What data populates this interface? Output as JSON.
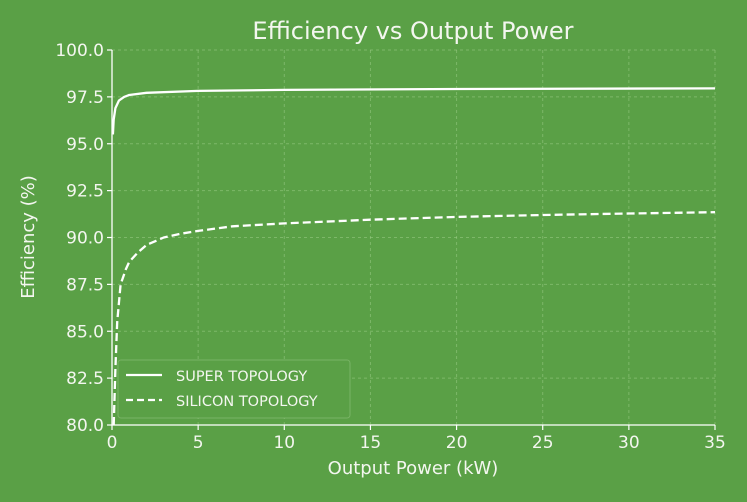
{
  "chart_data": {
    "type": "line",
    "title": "Efficiency vs Output Power",
    "xlabel": "Output Power (kW)",
    "ylabel": "Efficiency (%)",
    "xlim": [
      0,
      35
    ],
    "ylim": [
      80,
      100
    ],
    "xticks": [
      0,
      5,
      10,
      15,
      20,
      25,
      30,
      35
    ],
    "yticks": [
      "80.0",
      "82.5",
      "85.0",
      "87.5",
      "90.0",
      "92.5",
      "95.0",
      "97.5",
      "100.0"
    ],
    "grid": true,
    "legend_position": "lower-left",
    "series": [
      {
        "name": "SUPER TOPOLOGY",
        "style": "solid",
        "x": [
          0.05,
          0.1,
          0.2,
          0.4,
          0.7,
          1,
          2,
          5,
          10,
          20,
          35
        ],
        "y": [
          95.5,
          96.3,
          96.9,
          97.3,
          97.5,
          97.6,
          97.72,
          97.82,
          97.87,
          97.92,
          97.95
        ]
      },
      {
        "name": "SILICON TOPOLOGY",
        "style": "dashed",
        "x": [
          0.1,
          0.2,
          0.3,
          0.5,
          0.8,
          1,
          1.5,
          2,
          3,
          4,
          5,
          7,
          10,
          15,
          20,
          25,
          30,
          35
        ],
        "y": [
          80,
          83,
          85.5,
          87.5,
          88.3,
          88.7,
          89.2,
          89.6,
          90,
          90.2,
          90.35,
          90.6,
          90.75,
          90.95,
          91.1,
          91.2,
          91.28,
          91.35
        ]
      }
    ]
  },
  "colors": {
    "background": "#5aa046",
    "foreground": "#ffffff"
  }
}
